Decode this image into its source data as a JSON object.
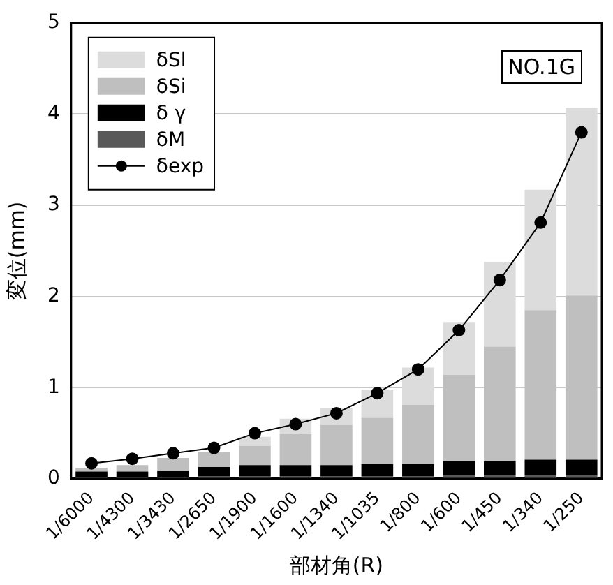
{
  "chart_data": {
    "type": "bar",
    "stacked": true,
    "xlabel": "部材角(R)",
    "ylabel": "変位(mm)",
    "categories": [
      "1/6000",
      "1/4300",
      "1/3430",
      "1/2650",
      "1/1900",
      "1/1600",
      "1/1340",
      "1/1035",
      "1/800",
      "1/600",
      "1/450",
      "1/340",
      "1/250"
    ],
    "series": [
      {
        "name": "δM",
        "color": "#595959",
        "values": [
          0.02,
          0.02,
          0.02,
          0.03,
          0.03,
          0.03,
          0.03,
          0.03,
          0.03,
          0.04,
          0.04,
          0.04,
          0.04
        ]
      },
      {
        "name": "δ γ",
        "color": "#000000",
        "values": [
          0.06,
          0.06,
          0.07,
          0.1,
          0.12,
          0.12,
          0.12,
          0.13,
          0.13,
          0.15,
          0.15,
          0.17,
          0.17
        ]
      },
      {
        "name": "δSi",
        "color": "#bfbfbf",
        "values": [
          0.04,
          0.07,
          0.14,
          0.16,
          0.21,
          0.34,
          0.44,
          0.51,
          0.65,
          0.95,
          1.26,
          1.64,
          1.8
        ]
      },
      {
        "name": "δSl",
        "color": "#dcdcdc",
        "values": [
          0,
          null,
          null,
          null,
          0.1,
          0.17,
          0.19,
          0.31,
          0.41,
          0.58,
          0.93,
          1.32,
          2.06
        ]
      },
      {
        "name": "δexp",
        "type": "line",
        "color": "#000000",
        "marker": "circle",
        "values": [
          0.17,
          0.22,
          0.28,
          0.34,
          0.5,
          0.6,
          0.72,
          0.94,
          1.2,
          1.63,
          2.18,
          2.81,
          3.8
        ]
      }
    ],
    "ylim": [
      0,
      5
    ],
    "yticks": [
      0,
      1,
      2,
      3,
      4,
      5
    ],
    "grid": "y",
    "legend": "top left",
    "annotations": [
      "NO.1G"
    ]
  }
}
